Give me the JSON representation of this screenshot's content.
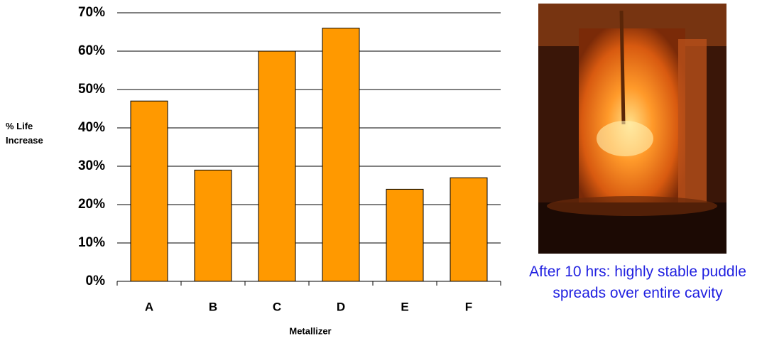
{
  "chart_data": {
    "type": "bar",
    "y_label": "% Life Increase",
    "x_label": "Metallizer",
    "categories": [
      "A",
      "B",
      "C",
      "D",
      "E",
      "F"
    ],
    "values": [
      47,
      29,
      60,
      66,
      24,
      27
    ],
    "color": "#ff9900",
    "ylim": [
      0,
      70
    ],
    "yticks": [
      {
        "value": 0,
        "label": "0%"
      },
      {
        "value": 10,
        "label": "10%"
      },
      {
        "value": 20,
        "label": "20%"
      },
      {
        "value": 30,
        "label": "30%"
      },
      {
        "value": 40,
        "label": "40%"
      },
      {
        "value": 50,
        "label": "50%"
      },
      {
        "value": 60,
        "label": "60%"
      },
      {
        "value": 70,
        "label": "70%"
      }
    ],
    "grid": true
  },
  "caption": "After 10 hrs: highly stable puddle spreads over entire cavity"
}
